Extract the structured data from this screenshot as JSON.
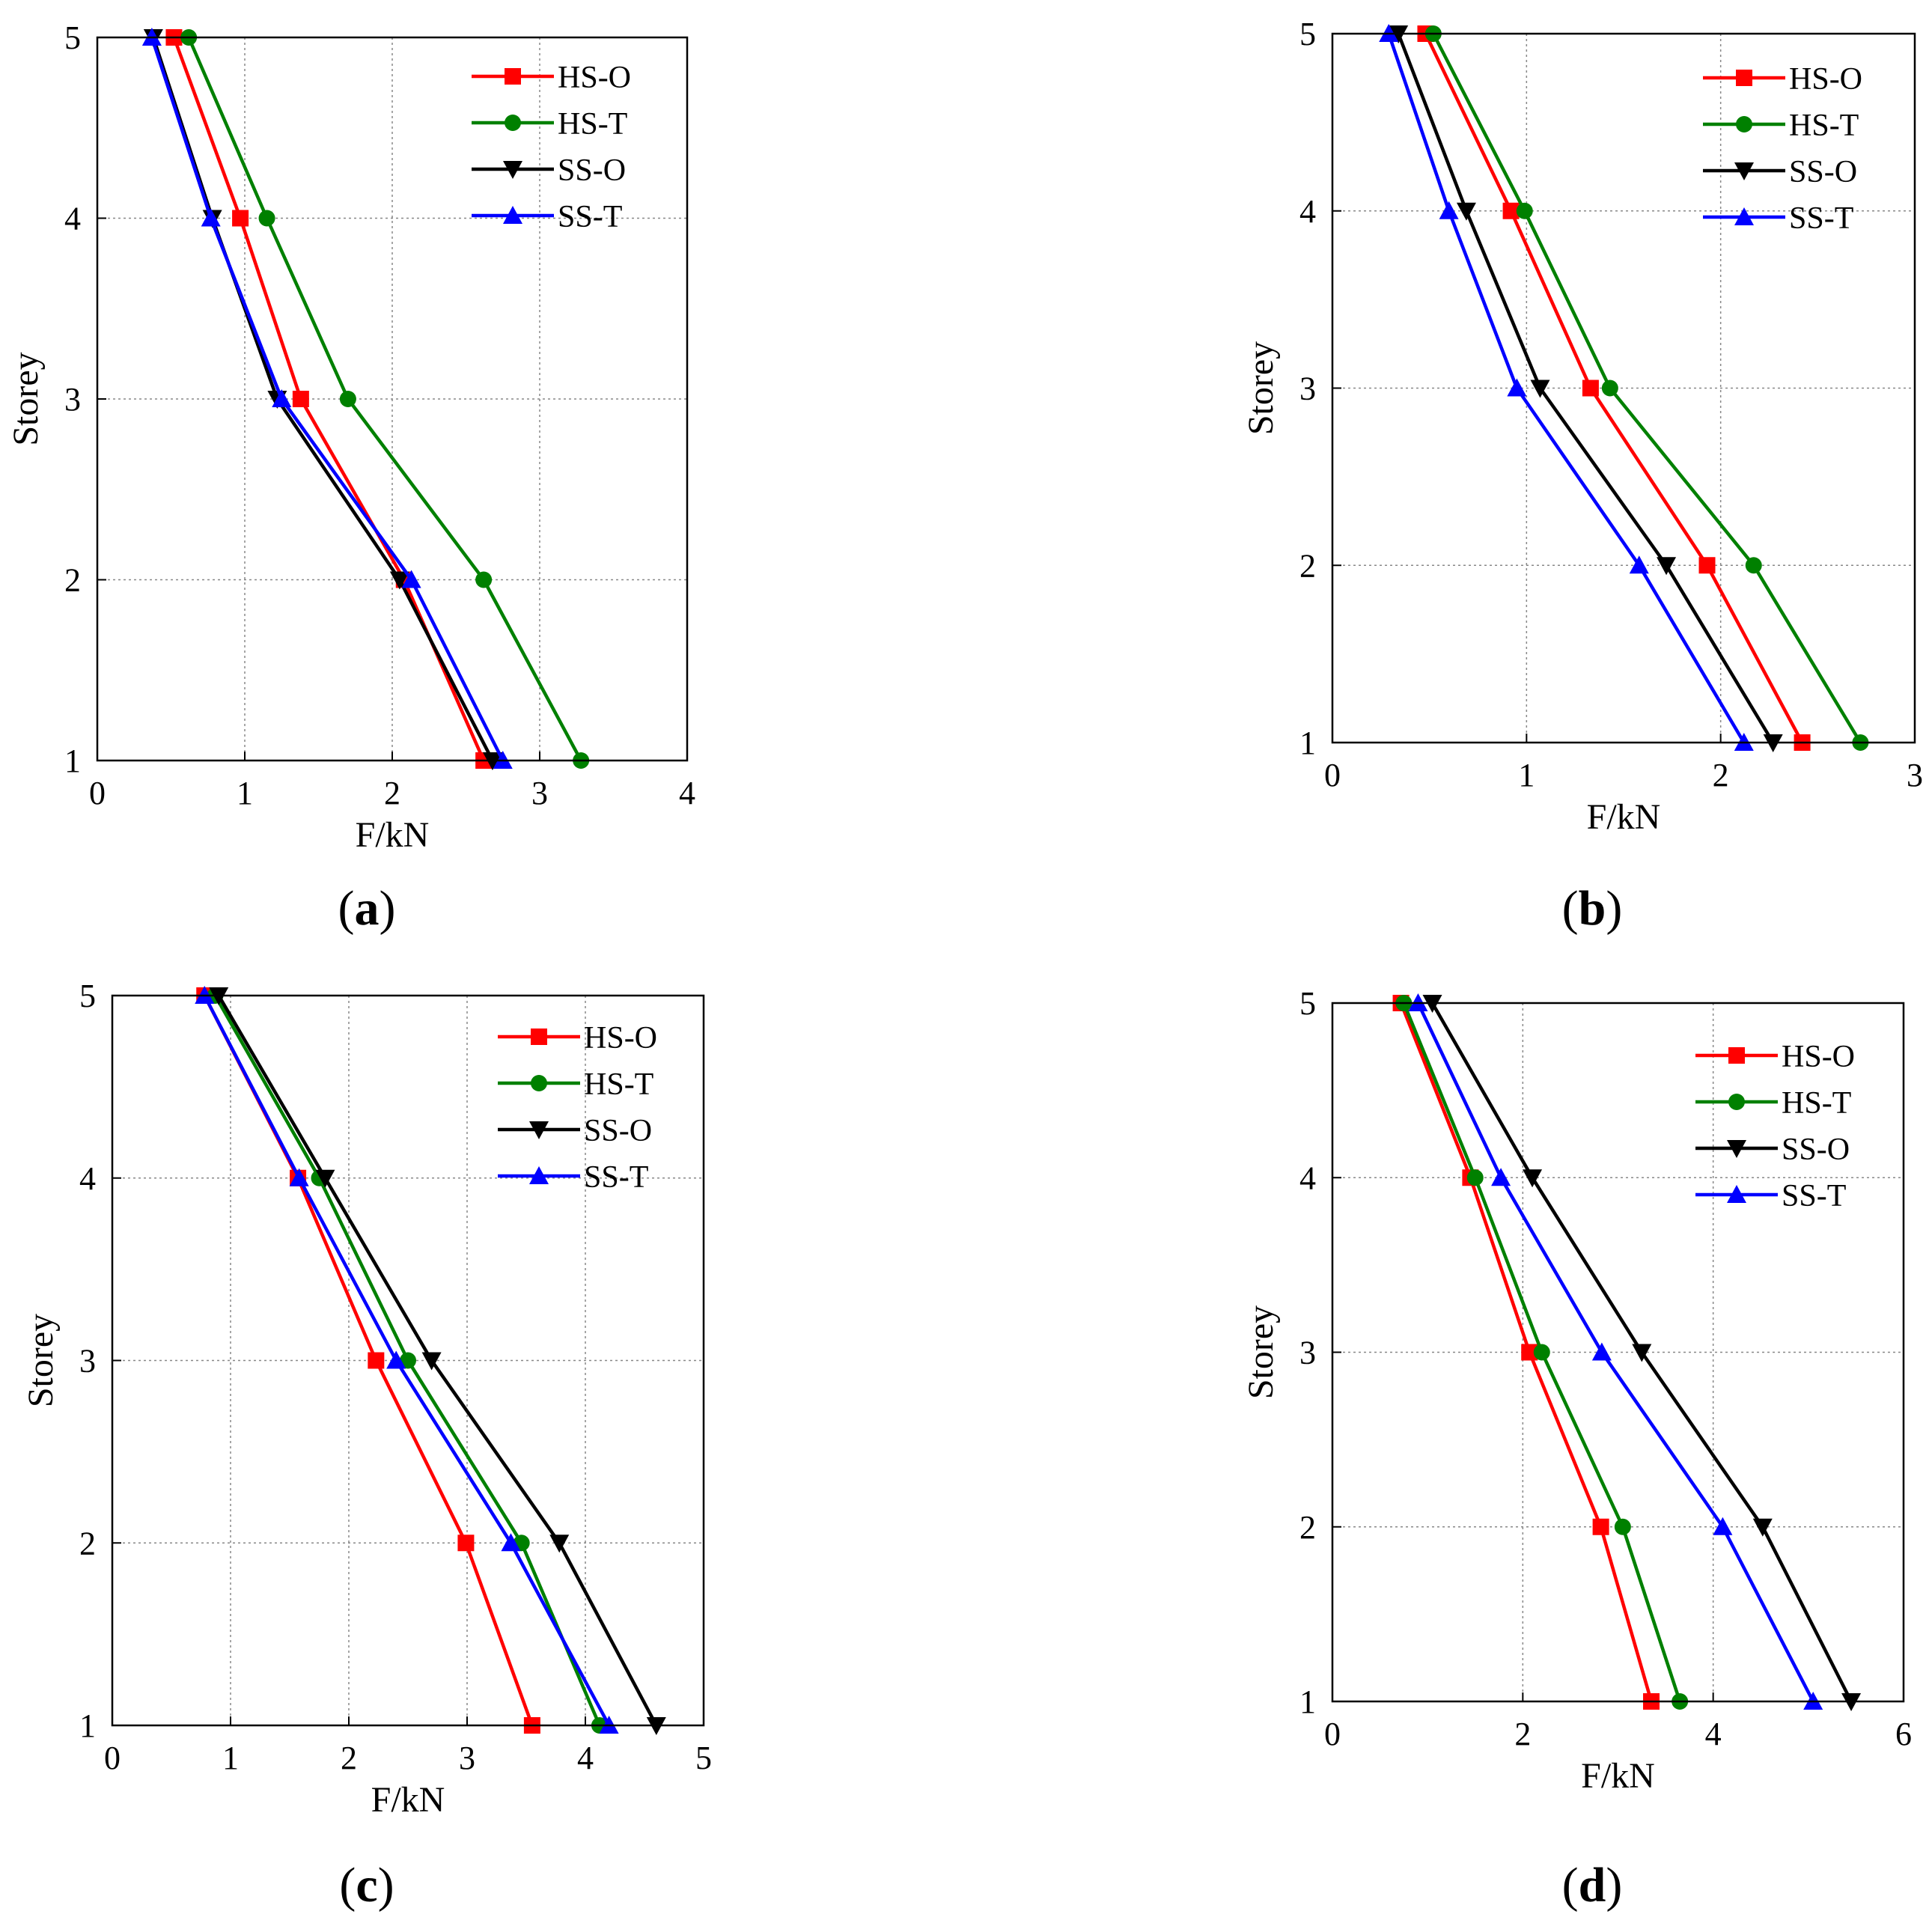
{
  "colors": {
    "HS-O": "#ff0000",
    "HS-T": "#008000",
    "SS-O": "#000000",
    "SS-T": "#0000ff",
    "grid": "#888888"
  },
  "chart_data": [
    {
      "id": "a",
      "type": "line",
      "caption": "(a)",
      "caption_letter": "a",
      "xlabel": "F/kN",
      "ylabel": "Storey",
      "xlim": [
        0,
        4
      ],
      "ylim": [
        1,
        5
      ],
      "xticks": [
        0,
        1,
        2,
        3,
        4
      ],
      "yticks": [
        1,
        2,
        3,
        4,
        5
      ],
      "grid": true,
      "legend_position": "top-right",
      "series": [
        {
          "name": "HS-O",
          "label": "HS-O",
          "marker": "square",
          "x": [
            2.62,
            2.08,
            1.38,
            0.97,
            0.52
          ],
          "y": [
            1,
            2,
            3,
            4,
            5
          ]
        },
        {
          "name": "HS-T",
          "label": " HS-T",
          "marker": "circle",
          "x": [
            3.28,
            2.62,
            1.7,
            1.15,
            0.62
          ],
          "y": [
            1,
            2,
            3,
            4,
            5
          ]
        },
        {
          "name": "SS-O",
          "label": "SS-O",
          "marker": "triangle-down",
          "x": [
            2.68,
            2.05,
            1.22,
            0.78,
            0.38
          ],
          "y": [
            1,
            2,
            3,
            4,
            5
          ]
        },
        {
          "name": "SS-T",
          "label": "SS-T",
          "marker": "triangle-up",
          "x": [
            2.75,
            2.13,
            1.25,
            0.77,
            0.37
          ],
          "y": [
            1,
            2,
            3,
            4,
            5
          ]
        }
      ]
    },
    {
      "id": "b",
      "type": "line",
      "caption": "(b)",
      "caption_letter": "b",
      "xlabel": "F/kN",
      "ylabel": "Storey",
      "xlim": [
        0,
        3
      ],
      "ylim": [
        1,
        5
      ],
      "xticks": [
        0,
        1,
        2,
        3
      ],
      "yticks": [
        1,
        2,
        3,
        4,
        5
      ],
      "grid": true,
      "legend_position": "top-right",
      "series": [
        {
          "name": "HS-O",
          "label": "HS-O",
          "marker": "square",
          "x": [
            2.42,
            1.93,
            1.33,
            0.92,
            0.48
          ],
          "y": [
            1,
            2,
            3,
            4,
            5
          ]
        },
        {
          "name": "HS-T",
          "label": " HS-T",
          "marker": "circle",
          "x": [
            2.72,
            2.17,
            1.43,
            0.99,
            0.52
          ],
          "y": [
            1,
            2,
            3,
            4,
            5
          ]
        },
        {
          "name": "SS-O",
          "label": "SS-O",
          "marker": "triangle-down",
          "x": [
            2.27,
            1.72,
            1.07,
            0.69,
            0.34
          ],
          "y": [
            1,
            2,
            3,
            4,
            5
          ]
        },
        {
          "name": "SS-T",
          "label": "SS-T",
          "marker": "triangle-up",
          "x": [
            2.12,
            1.58,
            0.95,
            0.6,
            0.29
          ],
          "y": [
            1,
            2,
            3,
            4,
            5
          ]
        }
      ]
    },
    {
      "id": "c",
      "type": "line",
      "caption": "(c)",
      "caption_letter": "c",
      "xlabel": "F/kN",
      "ylabel": "Storey",
      "xlim": [
        0,
        5
      ],
      "ylim": [
        1,
        5
      ],
      "xticks": [
        0,
        1,
        2,
        3,
        4,
        5
      ],
      "yticks": [
        1,
        2,
        3,
        4,
        5
      ],
      "grid": true,
      "legend_position": "top-right",
      "series": [
        {
          "name": "HS-O",
          "label": "HS-O",
          "marker": "square",
          "x": [
            3.55,
            2.99,
            2.23,
            1.57,
            0.78
          ],
          "y": [
            1,
            2,
            3,
            4,
            5
          ]
        },
        {
          "name": "HS-T",
          "label": " HS-T",
          "marker": "circle",
          "x": [
            4.12,
            3.46,
            2.5,
            1.75,
            0.87
          ],
          "y": [
            1,
            2,
            3,
            4,
            5
          ]
        },
        {
          "name": "SS-O",
          "label": "SS-O",
          "marker": "triangle-down",
          "x": [
            4.6,
            3.78,
            2.7,
            1.8,
            0.9
          ],
          "y": [
            1,
            2,
            3,
            4,
            5
          ]
        },
        {
          "name": "SS-T",
          "label": "SS-T",
          "marker": "triangle-up",
          "x": [
            4.2,
            3.37,
            2.4,
            1.58,
            0.78
          ],
          "y": [
            1,
            2,
            3,
            4,
            5
          ]
        }
      ]
    },
    {
      "id": "d",
      "type": "line",
      "caption": "(d)",
      "caption_letter": "d",
      "xlabel": "F/kN",
      "ylabel": "Storey",
      "xlim": [
        0,
        6
      ],
      "ylim": [
        1,
        5
      ],
      "xticks": [
        0,
        2,
        4,
        6
      ],
      "yticks": [
        1,
        2,
        3,
        4,
        5
      ],
      "grid": true,
      "legend_position": "top-right",
      "series": [
        {
          "name": "HS-O",
          "label": "HS-O",
          "marker": "square",
          "x": [
            3.35,
            2.82,
            2.07,
            1.45,
            0.72
          ],
          "y": [
            1,
            2,
            3,
            4,
            5
          ]
        },
        {
          "name": "HS-T",
          "label": " HS-T",
          "marker": "circle",
          "x": [
            3.65,
            3.05,
            2.2,
            1.5,
            0.75
          ],
          "y": [
            1,
            2,
            3,
            4,
            5
          ]
        },
        {
          "name": "SS-O",
          "label": "SS-O",
          "marker": "triangle-down",
          "x": [
            5.45,
            4.52,
            3.25,
            2.1,
            1.05
          ],
          "y": [
            1,
            2,
            3,
            4,
            5
          ]
        },
        {
          "name": "SS-T",
          "label": "SS-T",
          "marker": "triangle-up",
          "x": [
            5.05,
            4.1,
            2.83,
            1.77,
            0.9
          ],
          "y": [
            1,
            2,
            3,
            4,
            5
          ]
        }
      ]
    }
  ]
}
